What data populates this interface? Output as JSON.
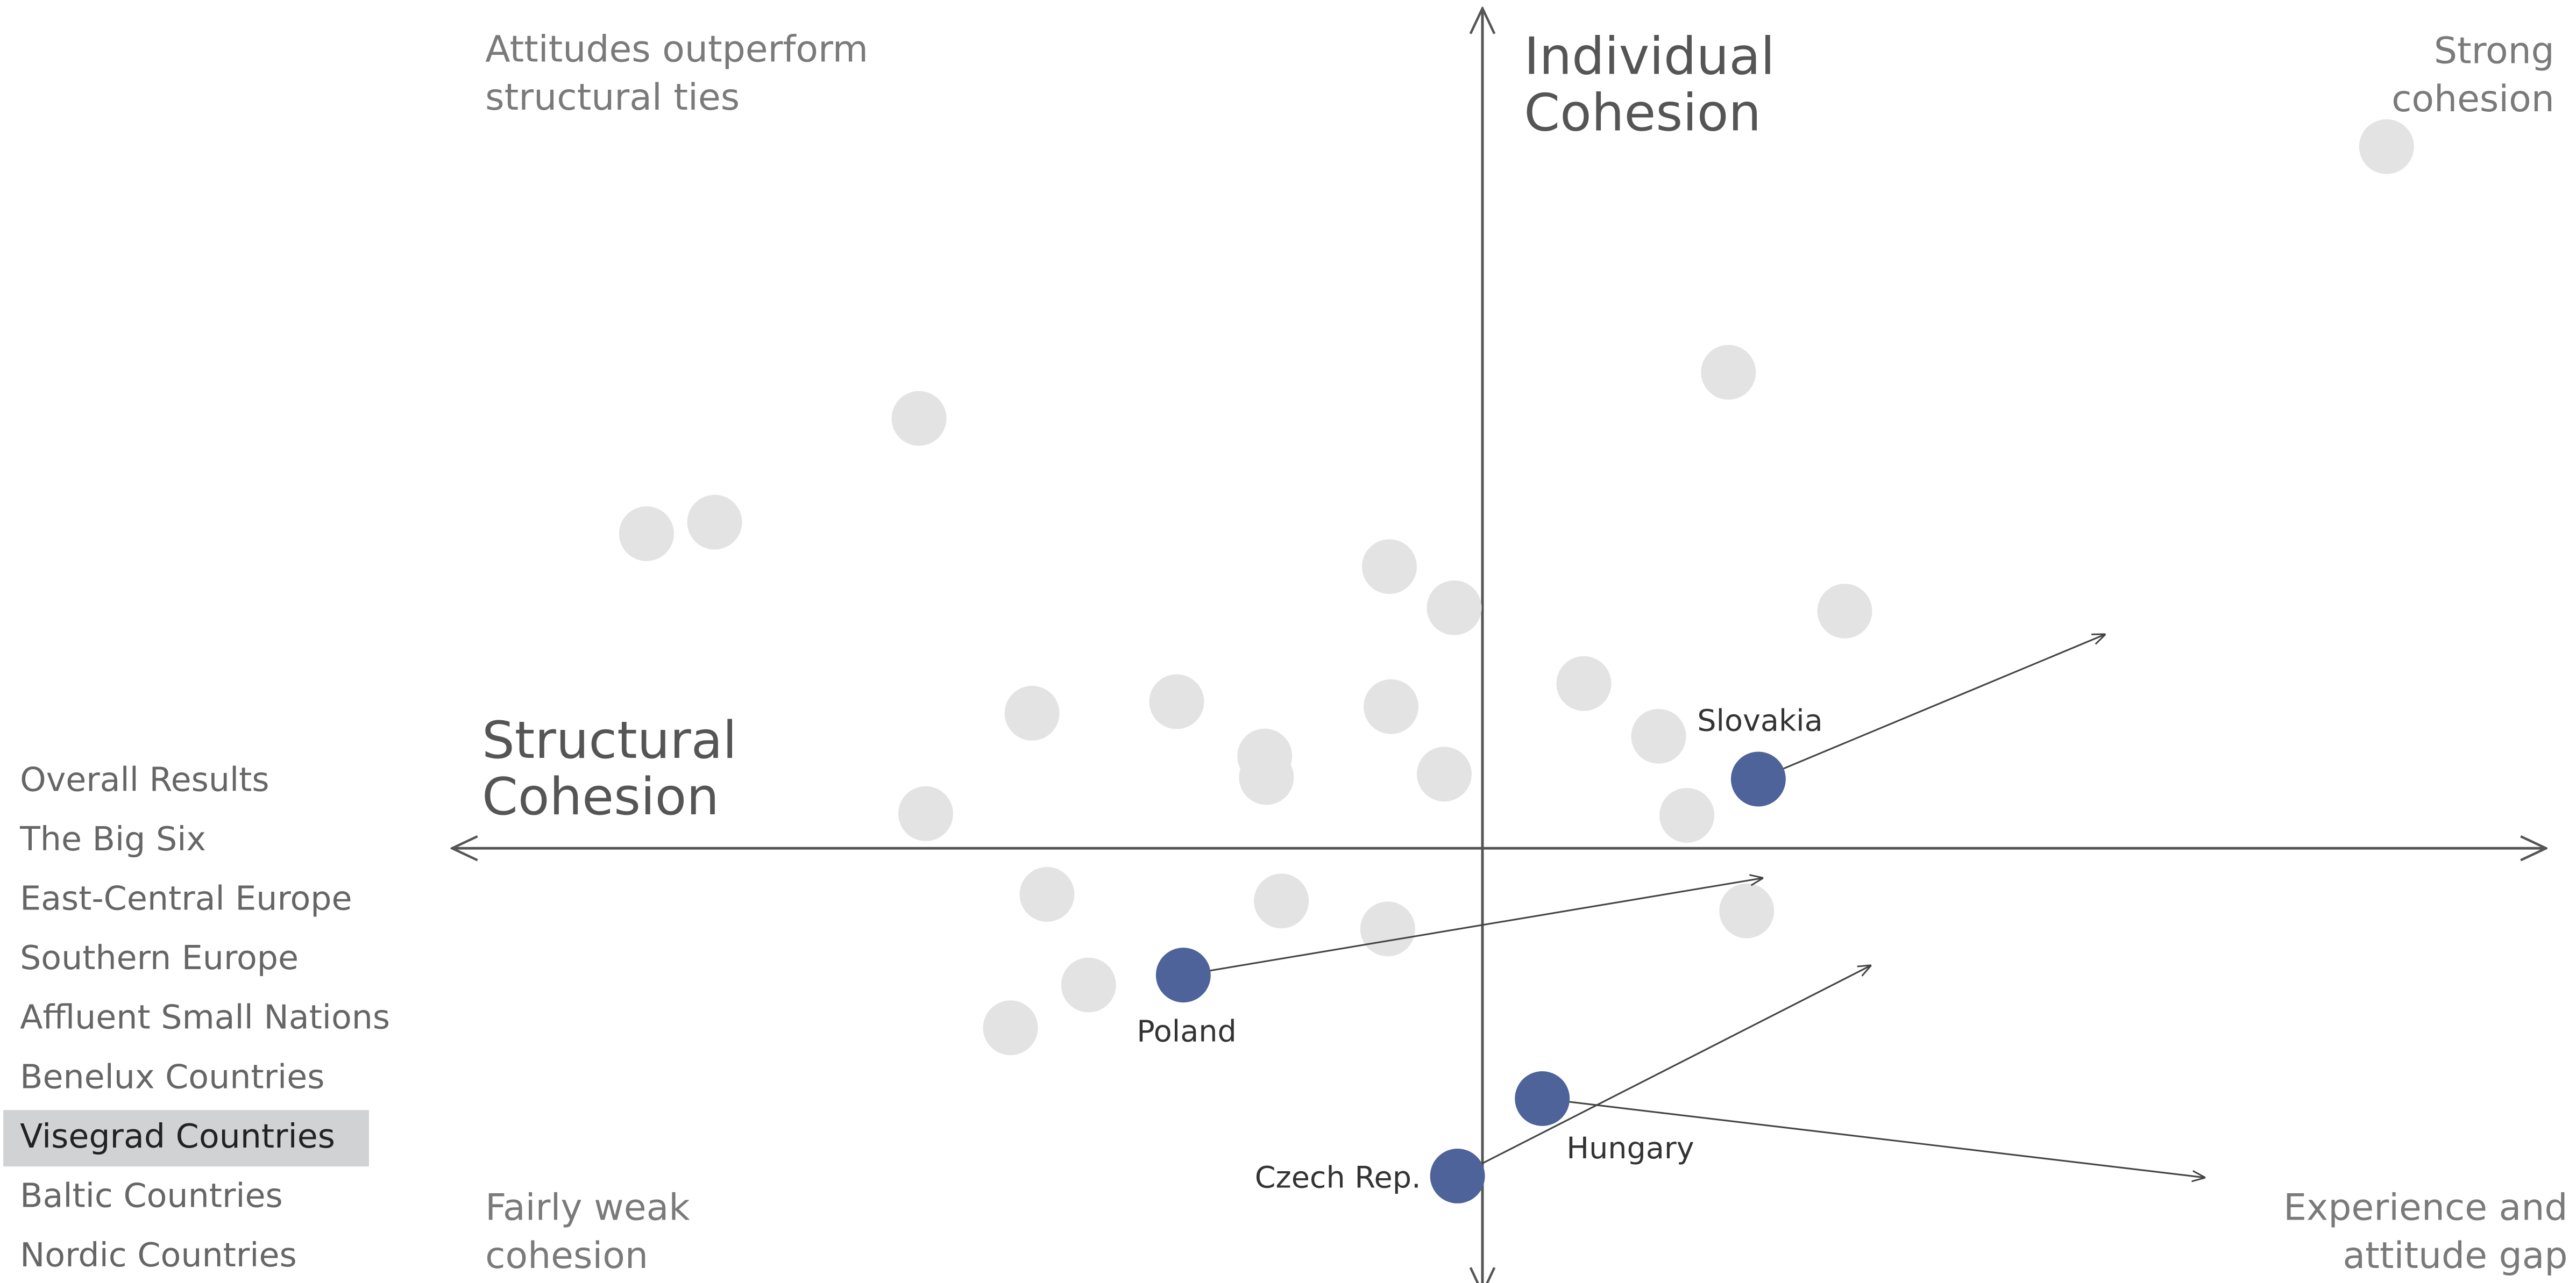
{
  "menu": {
    "items": [
      "Overall Results",
      "The Big Six",
      "East-Central Europe",
      "Southern Europe",
      "Affluent Small Nations",
      "Benelux Countries",
      "Visegrad Countries",
      "Baltic Countries",
      "Nordic Countries"
    ],
    "selected": 6
  },
  "chart_data": {
    "type": "scatter",
    "x_label": [
      "Structural",
      "Cohesion"
    ],
    "y_label": [
      "Individual",
      "Cohesion"
    ],
    "quadrants": {
      "top_left": [
        "Attitudes outperform",
        "structural ties"
      ],
      "top_right": [
        "Strong",
        "cohesion"
      ],
      "bottom_left": [
        "Fairly weak",
        "cohesion"
      ],
      "bottom_right": [
        "Experience and",
        "attitude gap"
      ]
    },
    "xlim": [
      -62,
      64
    ],
    "ylim": [
      -27,
      51
    ],
    "series": [
      {
        "color": "#e3e3e3",
        "x": [
          54.4,
          14.8,
          -33.9,
          -50.3,
          -46.2,
          -5.6,
          -1.7,
          21.8,
          6.1,
          -27.1,
          -18.4,
          -5.5,
          10.6,
          -13.1,
          -13,
          -2.3,
          -33.5,
          12.3,
          -26.2,
          -12.1,
          -5.7,
          15.9,
          -23.7,
          -28.4
        ],
        "values": [
          42.6,
          28.9,
          26.1,
          19.1,
          19.8,
          17.1,
          14.6,
          14.4,
          10,
          8.2,
          8.9,
          8.6,
          6.8,
          5.6,
          4.3,
          4.5,
          2.1,
          2,
          -2.8,
          -3.2,
          -4.9,
          -3.8,
          -8.3,
          -10.9
        ]
      },
      {
        "color": "#4d6399",
        "labels": [
          "Slovakia",
          "Poland",
          "Hungary",
          "Czech Rep."
        ],
        "x": [
          16.6,
          -18,
          3.6,
          -1.5
        ],
        "values": [
          4.2,
          -7.7,
          -15.2,
          -19.9
        ],
        "targets_x": [
          37.5,
          16.9,
          43.5,
          23.4
        ],
        "targets_y": [
          13,
          -1.8,
          -20,
          -7.1
        ]
      }
    ]
  }
}
